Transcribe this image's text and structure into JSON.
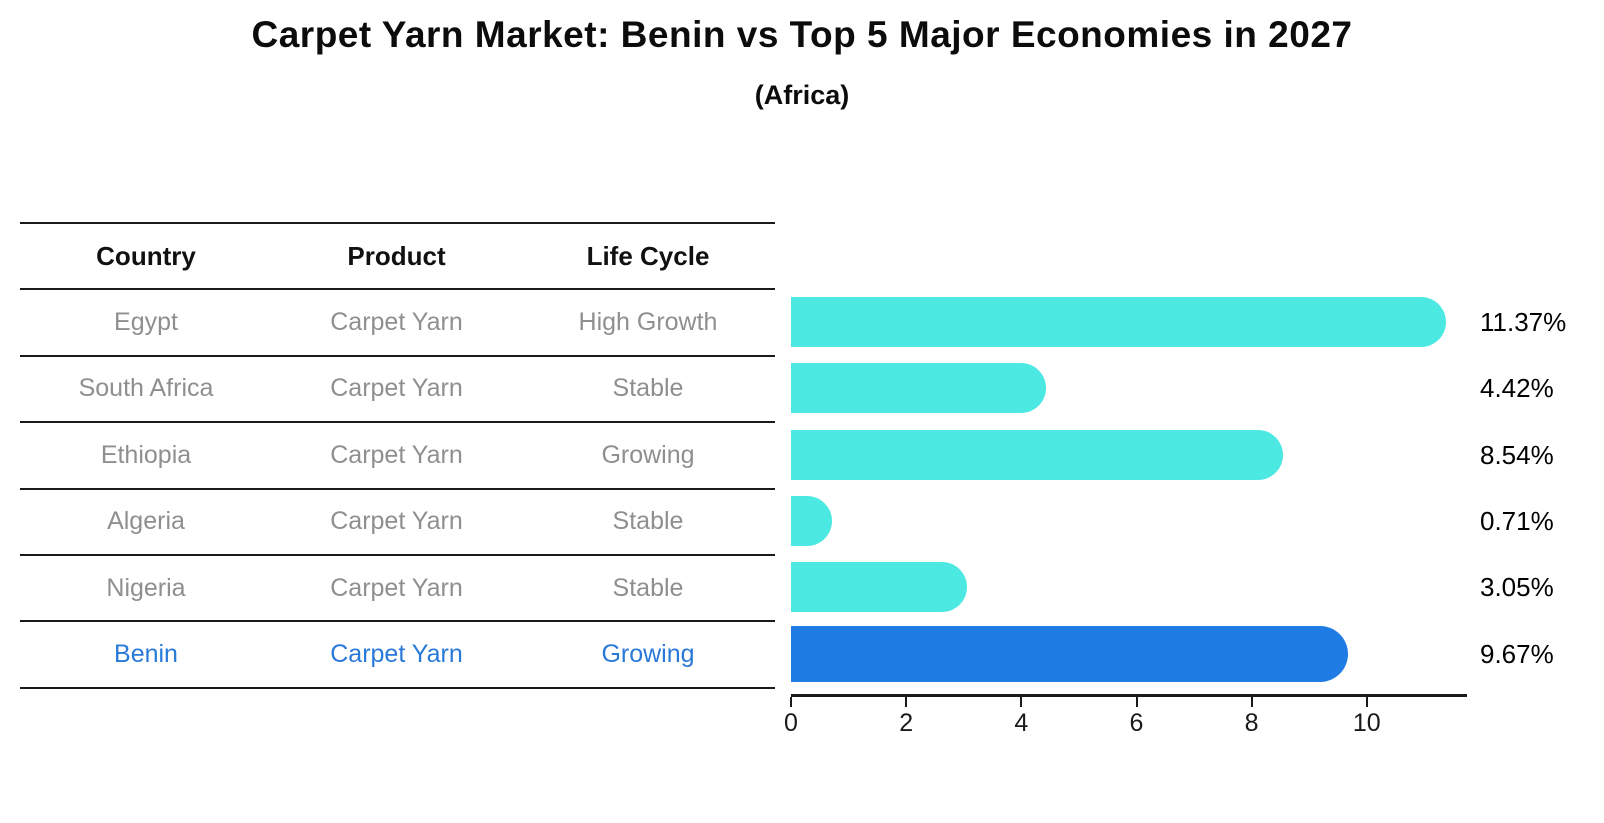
{
  "title": "Carpet Yarn Market: Benin vs Top 5 Major Economies in 2027",
  "subtitle": "(Africa)",
  "colors": {
    "bar_default": "#4ce8e2",
    "bar_highlight": "#1f7ce4",
    "bar_highlight_border": "#1f7ce4",
    "highlight_text": "#2879d8",
    "row_text": "#8f8f8f",
    "header_text": "#111111",
    "axis": "#1a1a1a"
  },
  "table": {
    "columns": [
      "Country",
      "Product",
      "Life Cycle"
    ],
    "rows": [
      {
        "country": "Egypt",
        "product": "Carpet Yarn",
        "life_cycle": "High Growth",
        "highlight": false
      },
      {
        "country": "South Africa",
        "product": "Carpet Yarn",
        "life_cycle": "Stable",
        "highlight": false
      },
      {
        "country": "Ethiopia",
        "product": "Carpet Yarn",
        "life_cycle": "Growing",
        "highlight": false
      },
      {
        "country": "Algeria",
        "product": "Carpet Yarn",
        "life_cycle": "Stable",
        "highlight": false
      },
      {
        "country": "Nigeria",
        "product": "Carpet Yarn",
        "life_cycle": "Stable",
        "highlight": false
      },
      {
        "country": "Benin",
        "product": "Carpet Yarn",
        "life_cycle": "Growing",
        "highlight": true
      }
    ]
  },
  "chart_data": {
    "type": "bar",
    "orientation": "horizontal",
    "title": "Carpet Yarn Market: Benin vs Top 5 Major Economies in 2027",
    "subtitle": "(Africa)",
    "categories": [
      "Egypt",
      "South Africa",
      "Ethiopia",
      "Algeria",
      "Nigeria",
      "Benin"
    ],
    "values": [
      11.37,
      4.42,
      8.54,
      0.71,
      3.05,
      9.67
    ],
    "labels": [
      "11.37%",
      "4.42%",
      "8.54%",
      "0.71%",
      "3.05%",
      "9.67%"
    ],
    "highlight_index": 5,
    "xlim": [
      0,
      11.74
    ],
    "xticks": [
      0,
      2,
      4,
      6,
      8,
      10
    ],
    "grid": false,
    "legend": false,
    "value_label_position": "right"
  }
}
